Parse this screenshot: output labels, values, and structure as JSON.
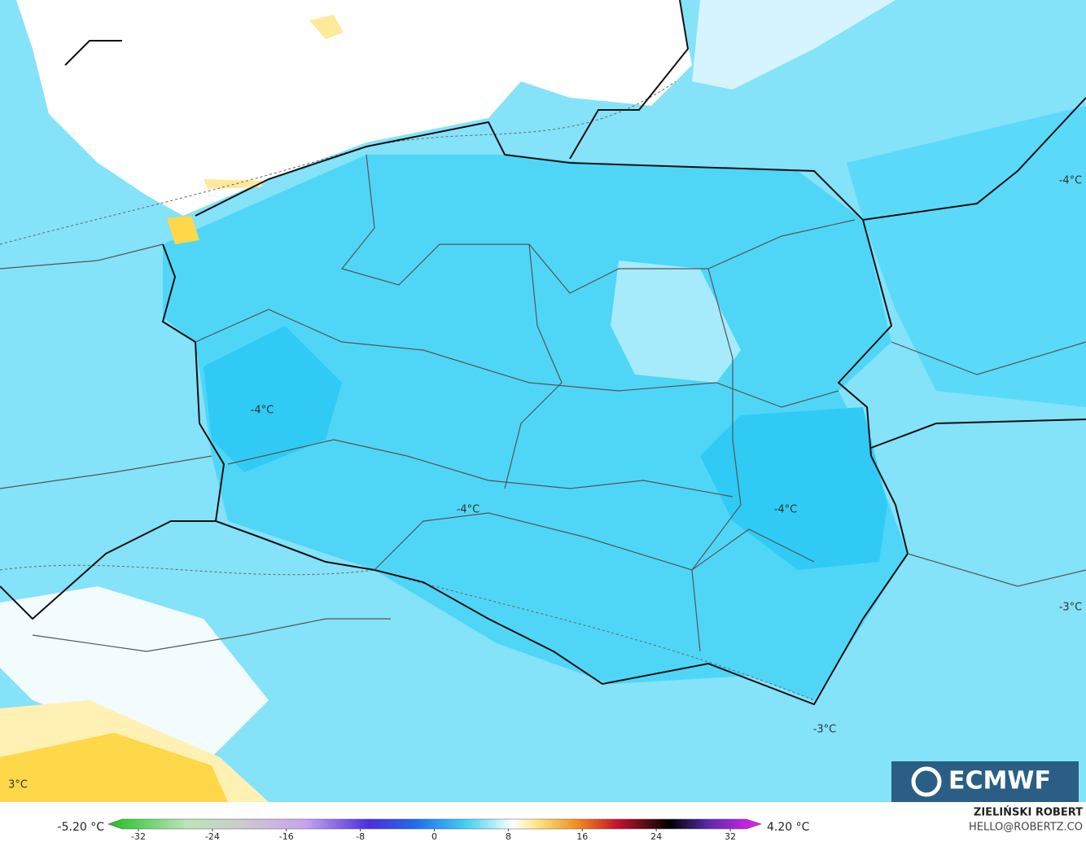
{
  "map": {
    "contour_labels": [
      "-4°C",
      "-4°C",
      "-4°C",
      "-4°C",
      "-3°C",
      "-3°C",
      "3°C"
    ],
    "logo": "ECMWF",
    "credit": {
      "name": "ZIELIŃSKI ROBERT",
      "email": "HELLO@ROBERTZ.CO"
    },
    "colorbar": {
      "min_label": "-5.20 °C",
      "max_label": "4.20 °C",
      "ticks": [
        -32,
        -24,
        -16,
        -8,
        0,
        8,
        16,
        24,
        32
      ]
    }
  }
}
